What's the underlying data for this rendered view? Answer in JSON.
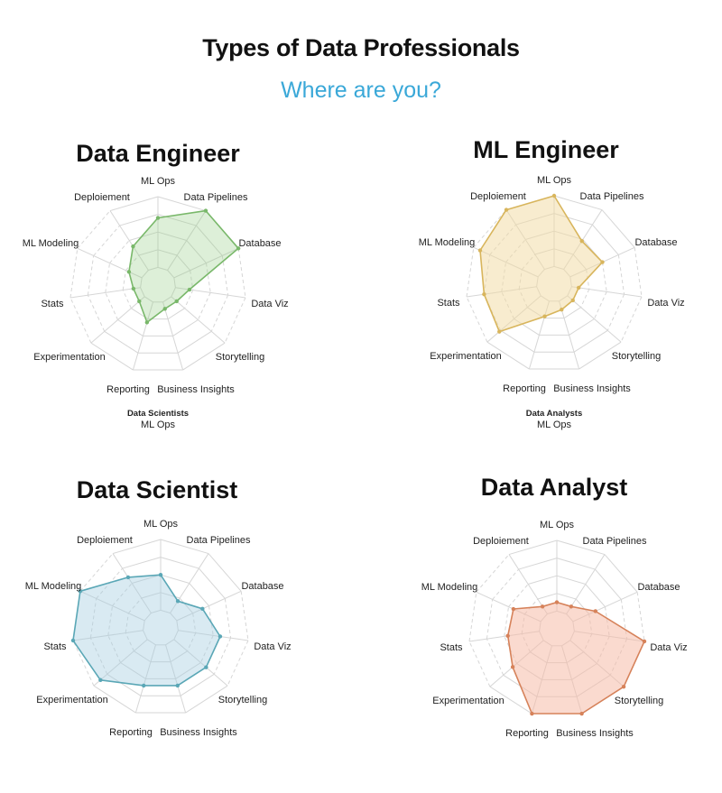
{
  "header": {
    "title": "Types of Data Professionals",
    "subtitle": "Where are you?"
  },
  "axes": [
    "ML Ops",
    "Data Pipelines",
    "Database",
    "Data Viz",
    "Storytelling",
    "Business Insights",
    "Reporting",
    "Experimentation",
    "Stats",
    "ML Modeling",
    "Deploiement"
  ],
  "captions": [
    {
      "bold": "Data Scientists",
      "sub": "ML Ops"
    },
    {
      "bold": "Data Analysts",
      "sub": "ML Ops"
    }
  ],
  "colors": {
    "title_accent": "#3aa8d8",
    "grid": "#d6d6d6"
  },
  "chart_data": [
    {
      "type": "radar",
      "title": "Data Engineer",
      "categories": [
        "ML Ops",
        "Data Pipelines",
        "Database",
        "Data Viz",
        "Storytelling",
        "Business Insights",
        "Reporting",
        "Experimentation",
        "Stats",
        "ML Modeling",
        "Deploiement"
      ],
      "values": [
        3.8,
        5,
        5,
        1.8,
        1.4,
        1.4,
        2.2,
        1.4,
        1.4,
        1.8,
        2.6
      ],
      "range": [
        0,
        5
      ],
      "rings": 5,
      "stroke": "#79b86a",
      "fill": "rgba(150,205,135,0.32)"
    },
    {
      "type": "radar",
      "title": "ML Engineer",
      "categories": [
        "ML Ops",
        "Data Pipelines",
        "Database",
        "Data Viz",
        "Storytelling",
        "Business Insights",
        "Reporting",
        "Experimentation",
        "Stats",
        "ML Modeling",
        "Deploiement"
      ],
      "values": [
        5,
        2.9,
        3,
        1.4,
        1.4,
        1.5,
        1.9,
        4.1,
        4,
        4.6,
        5
      ],
      "range": [
        0,
        5
      ],
      "rings": 5,
      "stroke": "#d8b55c",
      "fill": "rgba(242,218,160,0.5)"
    },
    {
      "type": "radar",
      "title": "Data Scientist",
      "categories": [
        "ML Ops",
        "Data Pipelines",
        "Database",
        "Data Viz",
        "Storytelling",
        "Business Insights",
        "Reporting",
        "Experimentation",
        "Stats",
        "ML Modeling",
        "Deploiement"
      ],
      "values": [
        3,
        1.8,
        2.6,
        3.4,
        3.4,
        3.4,
        3.4,
        4.5,
        5,
        5,
        3.4
      ],
      "range": [
        0,
        5
      ],
      "rings": 5,
      "stroke": "#5aa7b6",
      "fill": "rgba(165,205,225,0.42)"
    },
    {
      "type": "radar",
      "title": "Data Analyst",
      "categories": [
        "ML Ops",
        "Data Pipelines",
        "Database",
        "Data Viz",
        "Storytelling",
        "Business Insights",
        "Reporting",
        "Experimentation",
        "Stats",
        "ML Modeling",
        "Deploiement"
      ],
      "values": [
        1.5,
        1.5,
        2.4,
        5,
        5,
        5,
        5,
        3.3,
        2.8,
        2.7,
        1.5
      ],
      "range": [
        0,
        5
      ],
      "rings": 5,
      "stroke": "#d6825a",
      "fill": "rgba(245,188,168,0.55)"
    }
  ]
}
